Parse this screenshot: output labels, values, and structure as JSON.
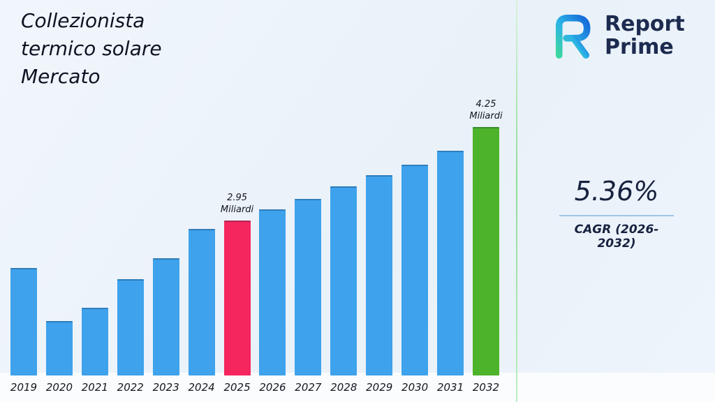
{
  "header": {
    "title_lines": [
      "Collezionista",
      "termico solare",
      "Mercato"
    ]
  },
  "logo": {
    "line1": "Report",
    "line2": "Prime"
  },
  "stats": {
    "cagr_value": "5.36%",
    "cagr_label": "CAGR (2026-2032)"
  },
  "chart_data": {
    "type": "bar",
    "title": "Collezionista termico solare Mercato",
    "unit": "Miliardi",
    "categories": [
      "2019",
      "2020",
      "2021",
      "2022",
      "2023",
      "2024",
      "2025",
      "2026",
      "2027",
      "2028",
      "2029",
      "2030",
      "2031",
      "2032"
    ],
    "values": [
      2.29,
      1.55,
      1.73,
      2.13,
      2.42,
      2.83,
      2.95,
      3.1,
      3.25,
      3.42,
      3.58,
      3.72,
      3.92,
      4.25
    ],
    "ylim": [
      0.79,
      4.5
    ],
    "grid": false,
    "legend": "none",
    "colors": {
      "default": "#3ea2ec",
      "overrides": {
        "6": "#f5265e",
        "13": "#4db32a"
      }
    },
    "annotations": [
      {
        "index": 6,
        "line1": "2.95",
        "line2": "Miliardi"
      },
      {
        "index": 13,
        "line1": "4.25",
        "line2": "Miliardi"
      }
    ]
  }
}
